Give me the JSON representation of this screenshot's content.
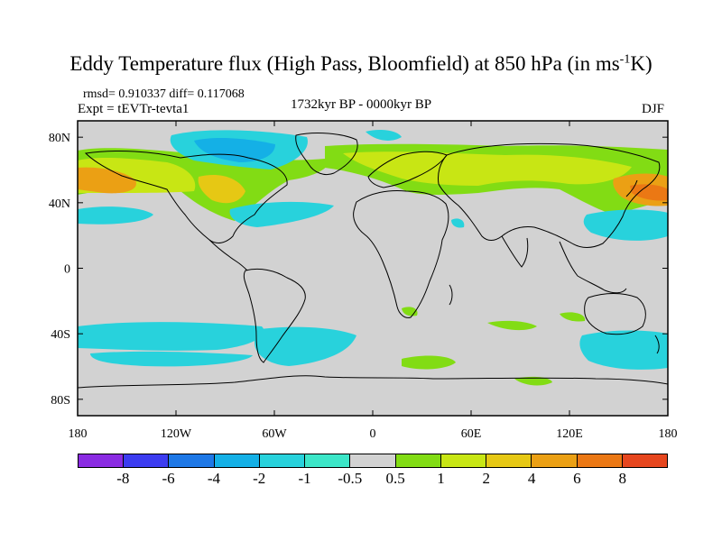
{
  "title": {
    "main": "Eddy Temperature flux (High Pass, Bloomfield) at 850 hPa (in ms",
    "sup": "-1",
    "end": "K)"
  },
  "stats": {
    "rmsd": "rmsd= 0.910337 diff= 0.117068",
    "expt": "Expt = tEVTr-tevta1",
    "period": "1732kyr BP - 0000kyr BP",
    "season": "DJF"
  },
  "axes": {
    "y_ticks": [
      "80N",
      "40N",
      "0",
      "40S",
      "80S"
    ],
    "x_ticks": [
      "180",
      "120W",
      "60W",
      "0",
      "60E",
      "120E",
      "180"
    ]
  },
  "colorbar": {
    "colors": [
      "#8a2be2",
      "#3c3cf0",
      "#1e78e6",
      "#14b0e6",
      "#28d2dc",
      "#3ce6c8",
      "#d2d2d2",
      "#82dc14",
      "#c8e614",
      "#e6c814",
      "#eba014",
      "#eb7814",
      "#e6461e"
    ],
    "labels": [
      "-8",
      "-6",
      "-4",
      "-2",
      "-1",
      "-0.5",
      "0.5",
      "1",
      "2",
      "4",
      "6",
      "8"
    ]
  },
  "map_colors": {
    "background": "#d2d2d2",
    "ocean_land_line": "#000000"
  }
}
